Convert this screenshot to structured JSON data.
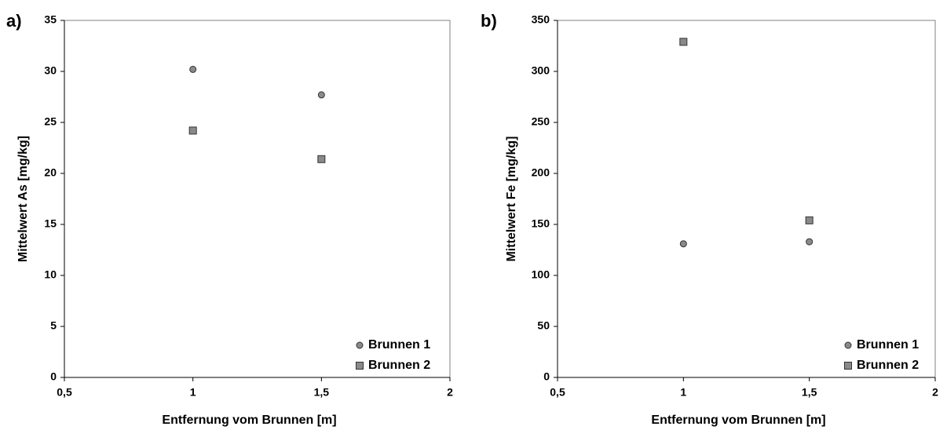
{
  "colors": {
    "marker_fill": "#8a8a8a",
    "marker_stroke": "#333333",
    "frame": "#808080"
  },
  "chart_data": [
    {
      "type": "scatter",
      "panel_label": "a)",
      "xlabel": "Entfernung vom Brunnen [m]",
      "ylabel": "Mittelwert As [mg/kg]",
      "xlim": [
        0.5,
        2
      ],
      "ylim": [
        0,
        35
      ],
      "xticks": [
        0.5,
        1,
        1.5,
        2
      ],
      "xtick_labels": [
        "0,5",
        "1",
        "1,5",
        "2"
      ],
      "yticks": [
        0,
        5,
        10,
        15,
        20,
        25,
        30,
        35
      ],
      "ytick_labels": [
        "0",
        "5",
        "10",
        "15",
        "20",
        "25",
        "30",
        "35"
      ],
      "grid": false,
      "legend_position": "bottom-right",
      "series": [
        {
          "name": "Brunnen 1",
          "marker": "circle",
          "x": [
            1,
            1.5
          ],
          "y": [
            30.2,
            27.7
          ]
        },
        {
          "name": "Brunnen 2",
          "marker": "square",
          "x": [
            1,
            1.5
          ],
          "y": [
            24.2,
            21.4
          ]
        }
      ]
    },
    {
      "type": "scatter",
      "panel_label": "b)",
      "xlabel": "Entfernung vom Brunnen [m]",
      "ylabel": "Mittelwert Fe [mg/kg]",
      "xlim": [
        0.5,
        2
      ],
      "ylim": [
        0,
        350
      ],
      "xticks": [
        0.5,
        1,
        1.5,
        2
      ],
      "xtick_labels": [
        "0,5",
        "1",
        "1,5",
        "2"
      ],
      "yticks": [
        0,
        50,
        100,
        150,
        200,
        250,
        300,
        350
      ],
      "ytick_labels": [
        "0",
        "50",
        "100",
        "150",
        "200",
        "250",
        "300",
        "350"
      ],
      "grid": false,
      "legend_position": "bottom-right",
      "series": [
        {
          "name": "Brunnen 1",
          "marker": "circle",
          "x": [
            1,
            1.5
          ],
          "y": [
            131,
            133
          ]
        },
        {
          "name": "Brunnen 2",
          "marker": "square",
          "x": [
            1,
            1.5
          ],
          "y": [
            329,
            154
          ]
        }
      ]
    }
  ]
}
